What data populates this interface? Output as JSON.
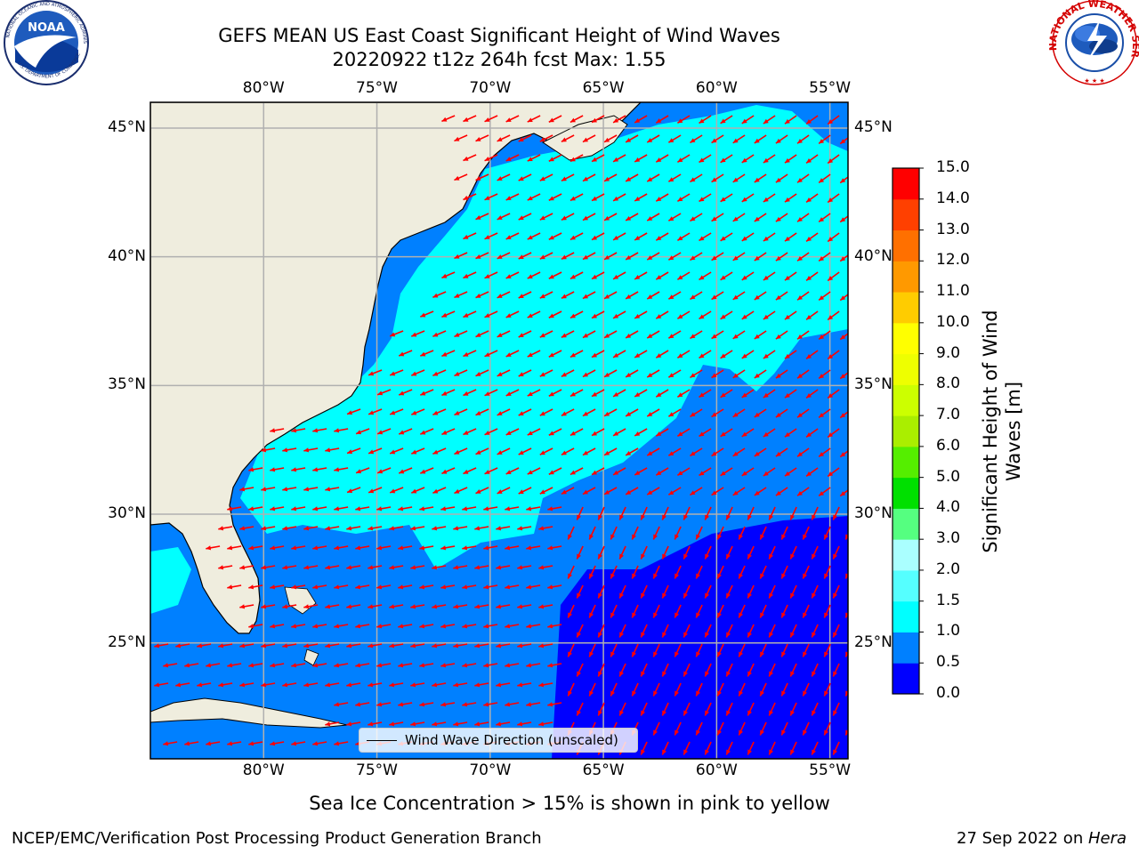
{
  "header": {
    "title_line1": "GEFS MEAN US East Coast Significant Height of Wind Waves",
    "title_line2": "20220922 t12z 264h fcst   Max: 1.55"
  },
  "logos": {
    "left": {
      "name": "NOAA",
      "ring_text": "NATIONAL OCEANIC AND ATMOSPHERIC ADMINISTRATION",
      "ring_text_bottom": "U.S. DEPARTMENT OF COMMERCE"
    },
    "right": {
      "ring_text": "NATIONAL WEATHER SERVICE"
    }
  },
  "map": {
    "lon_ticks": [
      "80°W",
      "75°W",
      "70°W",
      "65°W",
      "60°W",
      "55°W"
    ],
    "lat_ticks": [
      "45°N",
      "40°N",
      "35°N",
      "30°N",
      "25°N"
    ],
    "lon_values": [
      -80,
      -75,
      -70,
      -65,
      -60,
      -55
    ],
    "lat_values": [
      45,
      40,
      35,
      30,
      25
    ],
    "extent": {
      "lon_min": -85,
      "lon_max": -54.2,
      "lat_min": 20.5,
      "lat_max": 46
    },
    "land_color": "#efedde",
    "arrow_color": "#ff0000",
    "grid_color": "#b0b0b0",
    "legend_label": "Wind Wave Direction (unscaled)"
  },
  "colorbar": {
    "title_line1": "Significant Height of Wind",
    "title_line2": "Waves [m]",
    "levels": [
      0.0,
      0.5,
      1.0,
      1.5,
      2.0,
      3.0,
      4.0,
      5.0,
      6.0,
      7.0,
      8.0,
      9.0,
      10.0,
      11.0,
      12.0,
      13.0,
      14.0,
      15.0
    ],
    "tick_labels": [
      "0.0",
      "0.5",
      "1.0",
      "1.5",
      "2.0",
      "3.0",
      "4.0",
      "5.0",
      "6.0",
      "7.0",
      "8.0",
      "9.0",
      "10.0",
      "11.0",
      "12.0",
      "13.0",
      "14.0",
      "15.0"
    ],
    "colors": [
      "#0000ff",
      "#0080ff",
      "#00ffff",
      "#55ffff",
      "#aaffff",
      "#55ff80",
      "#00e000",
      "#55ee00",
      "#aaee00",
      "#ccff00",
      "#eeff00",
      "#ffff00",
      "#ffcc00",
      "#ff9900",
      "#ff7000",
      "#ff4000",
      "#ff0000"
    ]
  },
  "footer": {
    "note": "Sea Ice Concentration > 15% is shown in pink to yellow",
    "left": "NCEP/EMC/Verification Post Processing Product Generation Branch",
    "right_prefix": "27 Sep 2022 on ",
    "right_host": "Hera"
  }
}
